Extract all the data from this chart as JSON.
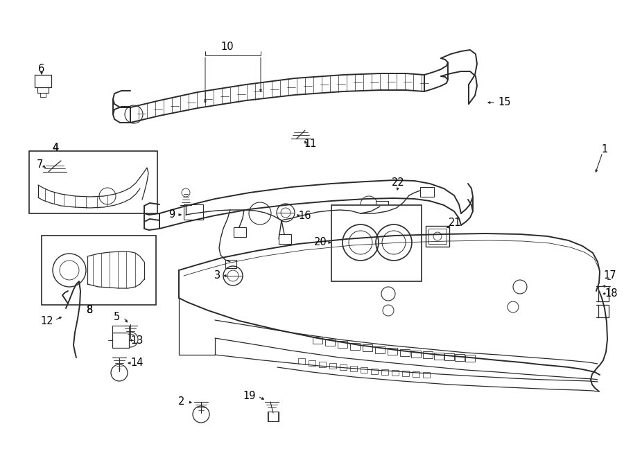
{
  "bg_color": "#ffffff",
  "line_color": "#2a2a2a",
  "label_color": "#000000",
  "figsize": [
    9.0,
    6.61
  ],
  "dpi": 100,
  "label_fontsize": 10.5
}
